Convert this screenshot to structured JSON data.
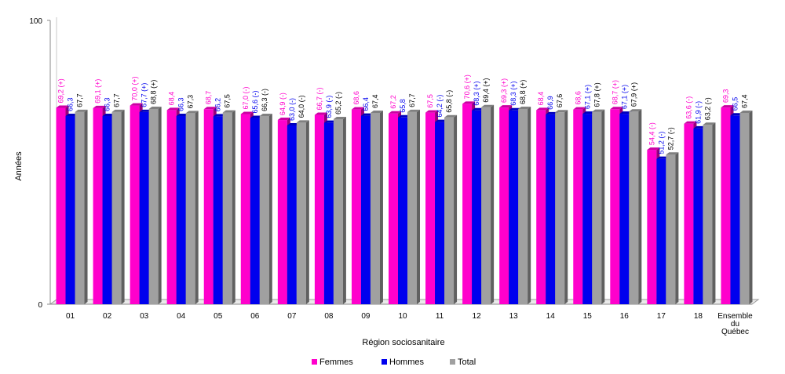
{
  "chart_data": {
    "type": "bar",
    "title": "",
    "xlabel": "Région sociosanitaire",
    "ylabel": "Années",
    "ylim": [
      0,
      100
    ],
    "yticks": [
      "0",
      "100"
    ],
    "categories": [
      "01",
      "02",
      "03",
      "04",
      "05",
      "06",
      "07",
      "08",
      "09",
      "10",
      "11",
      "12",
      "13",
      "14",
      "15",
      "16",
      "17",
      "18",
      "Ensemble du Québec"
    ],
    "series": [
      {
        "name": "Femmes",
        "color": "#ff00cc",
        "values": [
          69.2,
          69.1,
          70.0,
          68.4,
          68.7,
          67.0,
          64.9,
          66.7,
          68.6,
          67.2,
          67.5,
          70.6,
          69.3,
          68.4,
          68.6,
          68.7,
          54.4,
          63.6,
          69.3
        ],
        "labels": [
          "69,2 (+)",
          "69,1 (+)",
          "70,0 (+)",
          "68,4",
          "68,7",
          "67,0 (-)",
          "64,9 (-)",
          "66,7 (-)",
          "68,6",
          "67,2",
          "67,5",
          "70,6 (+)",
          "69,3 (+)",
          "68,4",
          "68,6",
          "68,7 (+)",
          "54,4 (-)",
          "63,6 (-)",
          "69,3"
        ]
      },
      {
        "name": "Hommes",
        "color": "#0000ee",
        "values": [
          66.3,
          66.3,
          67.7,
          66.3,
          66.2,
          65.6,
          63.0,
          63.9,
          66.4,
          65.8,
          64.2,
          68.3,
          68.3,
          66.9,
          67.1,
          67.1,
          51.2,
          61.9,
          66.5
        ],
        "labels": [
          "66,3",
          "66,3",
          "67,7 (+)",
          "66,3",
          "66,2",
          "65,6 (-)",
          "63,0 (-)",
          "63,9 (-)",
          "66,4",
          "65,8",
          "64,2 (-)",
          "68,3 (+)",
          "68,3 (+)",
          "66,9",
          "67,1 (+)",
          "67,1 (+)",
          "51,2 (-)",
          "61,9 (-)",
          "66,5"
        ]
      },
      {
        "name": "Total",
        "color": "#a0a0a0",
        "values": [
          67.7,
          67.7,
          68.8,
          67.3,
          67.5,
          66.3,
          64.0,
          65.2,
          67.4,
          67.7,
          65.8,
          69.4,
          68.8,
          67.6,
          67.8,
          67.9,
          52.7,
          63.2,
          67.4
        ],
        "labels": [
          "67,7",
          "67,7",
          "68,8 (+)",
          "67,3",
          "67,5",
          "66,3 (-)",
          "64,0 (-)",
          "65,2 (-)",
          "67,4",
          "67,7",
          "65,8 (-)",
          "69,4 (+)",
          "68,8 (+)",
          "67,6",
          "67,8 (+)",
          "67,9 (+)",
          "52,7 (-)",
          "63,2 (-)",
          "67,4"
        ]
      }
    ],
    "legend": {
      "placement": "bottom-center"
    },
    "grid": false
  }
}
